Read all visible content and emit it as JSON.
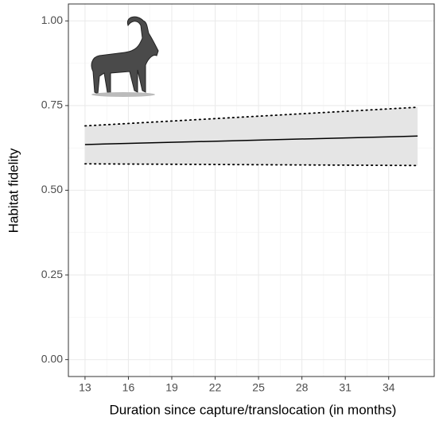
{
  "chart_data": {
    "type": "line",
    "x_label": "Duration since capture/translocation (in months)",
    "y_label": "Habitat fidelity",
    "x": [
      13,
      36
    ],
    "fit": {
      "color": "#000000",
      "values": [
        0.635,
        0.66
      ]
    },
    "ci_lower": {
      "color": "#000000",
      "values": [
        0.578,
        0.573
      ]
    },
    "ci_upper": {
      "color": "#000000",
      "values": [
        0.69,
        0.745
      ]
    },
    "ribbon_color": "#e5e5e5",
    "xlim": [
      11.85,
      37.15
    ],
    "xticks": [
      13,
      16,
      19,
      22,
      25,
      28,
      31,
      34
    ],
    "ylim": [
      -0.05,
      1.05
    ],
    "yticks": [
      {
        "value": 0,
        "label": "0.00"
      },
      {
        "value": 0.25,
        "label": "0.25"
      },
      {
        "value": 0.5,
        "label": "0.50"
      },
      {
        "value": 0.75,
        "label": "0.75"
      },
      {
        "value": 1,
        "label": "1.00"
      }
    ],
    "grid": true
  }
}
